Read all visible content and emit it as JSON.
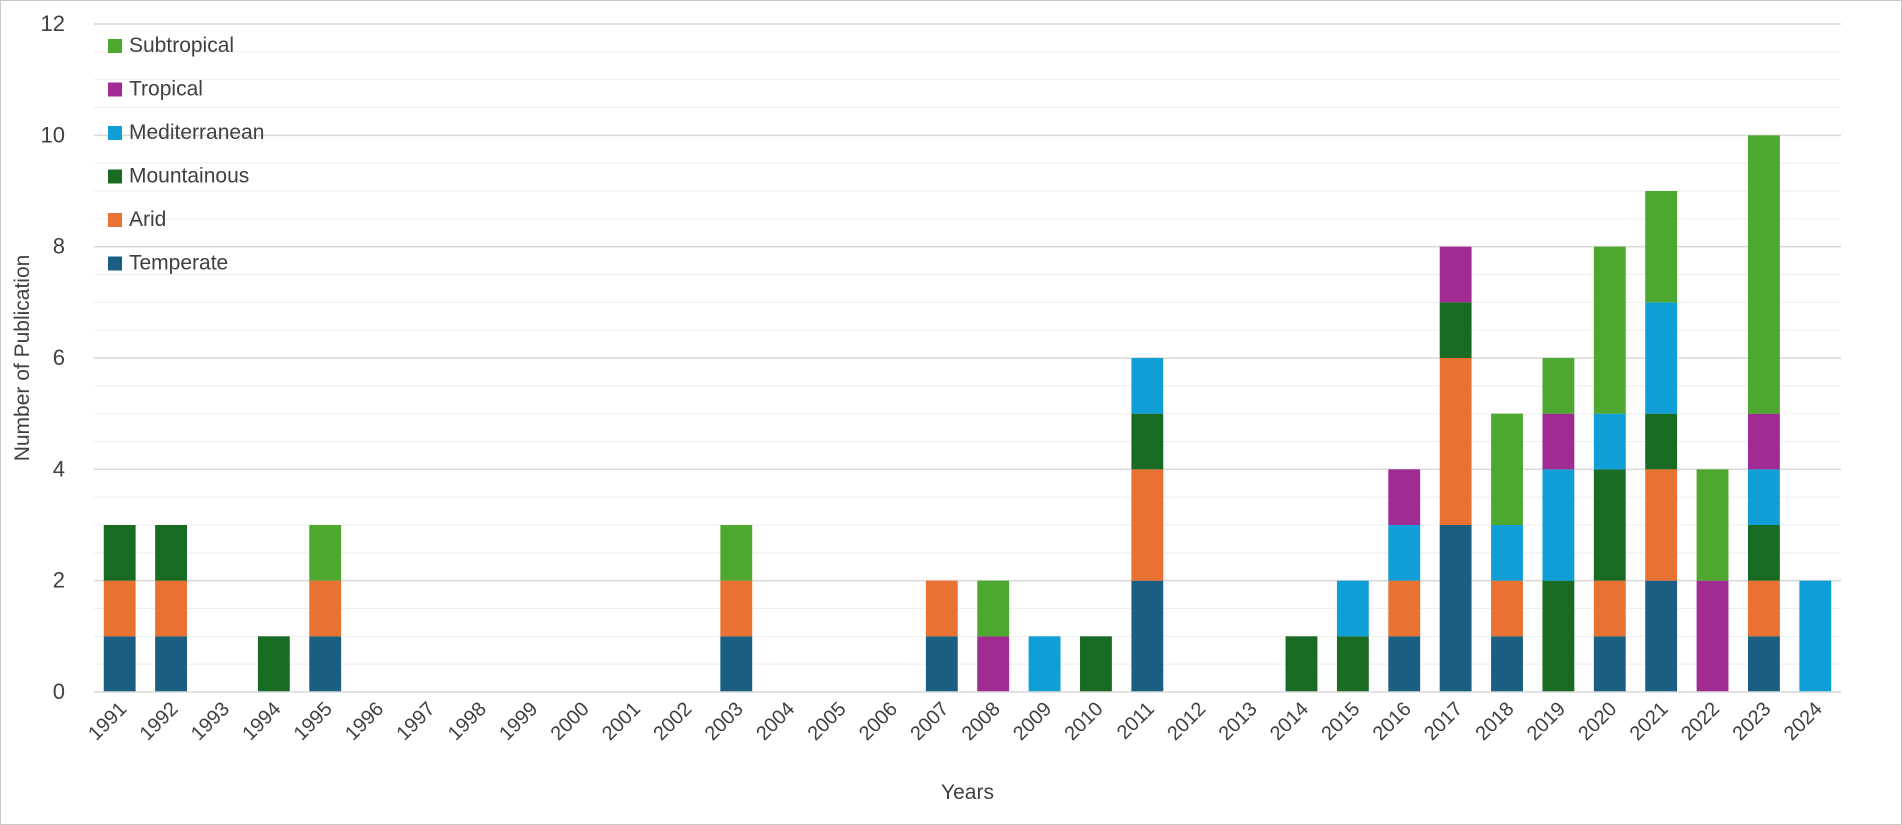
{
  "chart_data": {
    "type": "bar",
    "stacked": true,
    "title": "",
    "xlabel": "Years",
    "ylabel": "Number of Publication",
    "ylim": [
      0,
      12
    ],
    "yticks": [
      0,
      2,
      4,
      6,
      8,
      10,
      12
    ],
    "grid": true,
    "legend_position": "top-left",
    "categories": [
      "1991",
      "1992",
      "1993",
      "1994",
      "1995",
      "1996",
      "1997",
      "1998",
      "1999",
      "2000",
      "2001",
      "2002",
      "2003",
      "2004",
      "2005",
      "2006",
      "2007",
      "2008",
      "2009",
      "2010",
      "2011",
      "2012",
      "2013",
      "2014",
      "2015",
      "2016",
      "2017",
      "2018",
      "2019",
      "2020",
      "2021",
      "2022",
      "2023",
      "2024"
    ],
    "series": [
      {
        "name": "Temperate",
        "color": "#1a5f82",
        "values": [
          1,
          1,
          0,
          0,
          1,
          0,
          0,
          0,
          0,
          0,
          0,
          0,
          1,
          0,
          0,
          0,
          1,
          0,
          0,
          0,
          2,
          0,
          0,
          0,
          0,
          1,
          3,
          1,
          0,
          1,
          2,
          0,
          1,
          0
        ]
      },
      {
        "name": "Arid",
        "color": "#e97132",
        "values": [
          1,
          1,
          0,
          0,
          1,
          0,
          0,
          0,
          0,
          0,
          0,
          0,
          1,
          0,
          0,
          0,
          1,
          0,
          0,
          0,
          2,
          0,
          0,
          0,
          0,
          1,
          3,
          1,
          0,
          1,
          2,
          0,
          1,
          0
        ]
      },
      {
        "name": "Mountainous",
        "color": "#196b24",
        "values": [
          1,
          1,
          0,
          1,
          0,
          0,
          0,
          0,
          0,
          0,
          0,
          0,
          0,
          0,
          0,
          0,
          0,
          0,
          0,
          1,
          1,
          0,
          0,
          1,
          1,
          0,
          1,
          0,
          2,
          2,
          1,
          0,
          1,
          0
        ]
      },
      {
        "name": "Mediterranean",
        "color": "#0f9ed5",
        "values": [
          0,
          0,
          0,
          0,
          0,
          0,
          0,
          0,
          0,
          0,
          0,
          0,
          0,
          0,
          0,
          0,
          0,
          0,
          1,
          0,
          1,
          0,
          0,
          0,
          1,
          1,
          0,
          1,
          2,
          1,
          2,
          0,
          1,
          2
        ]
      },
      {
        "name": "Tropical",
        "color": "#a02b93",
        "values": [
          0,
          0,
          0,
          0,
          0,
          0,
          0,
          0,
          0,
          0,
          0,
          0,
          0,
          0,
          0,
          0,
          0,
          1,
          0,
          0,
          0,
          0,
          0,
          0,
          0,
          1,
          1,
          0,
          1,
          0,
          0,
          2,
          1,
          0
        ]
      },
      {
        "name": "Subtropical",
        "color": "#4ea72e",
        "values": [
          0,
          0,
          0,
          0,
          1,
          0,
          0,
          0,
          0,
          0,
          0,
          0,
          1,
          0,
          0,
          0,
          0,
          1,
          0,
          0,
          0,
          0,
          0,
          0,
          0,
          0,
          0,
          2,
          1,
          3,
          2,
          2,
          5,
          0
        ]
      }
    ]
  }
}
